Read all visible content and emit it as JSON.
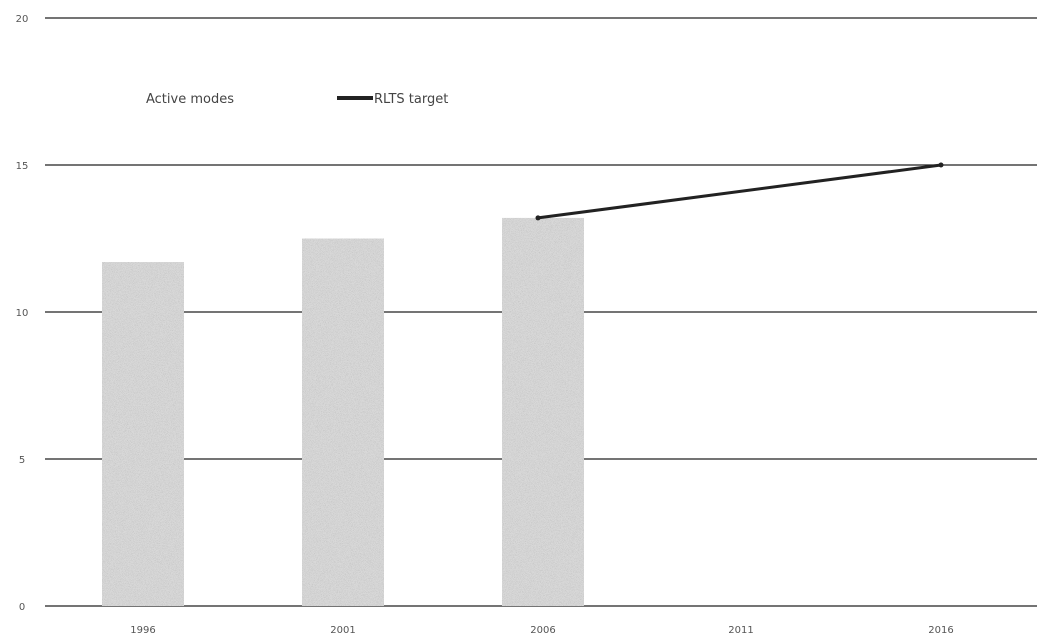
{
  "chart_data": {
    "type": "bar",
    "categories": [
      "1996",
      "2001",
      "2006",
      "2011",
      "2016"
    ],
    "series": [
      {
        "name": "Active modes",
        "kind": "bar",
        "values": [
          11.7,
          12.5,
          13.2,
          null,
          null
        ]
      },
      {
        "name": "RLTS target",
        "kind": "line",
        "points": [
          [
            2006,
            13.2
          ],
          [
            2016,
            15.0
          ]
        ]
      }
    ],
    "y_ticks": [
      "0",
      "5",
      "10",
      "15",
      "20"
    ],
    "ylim": [
      0,
      20
    ],
    "grid": true,
    "legend_position": "top-left",
    "colors": {
      "bar": "#d8d8d8",
      "line": "#222222",
      "grid": "#222222"
    }
  },
  "legend": {
    "active_modes_label": "Active modes",
    "target_label": "RLTS target"
  }
}
